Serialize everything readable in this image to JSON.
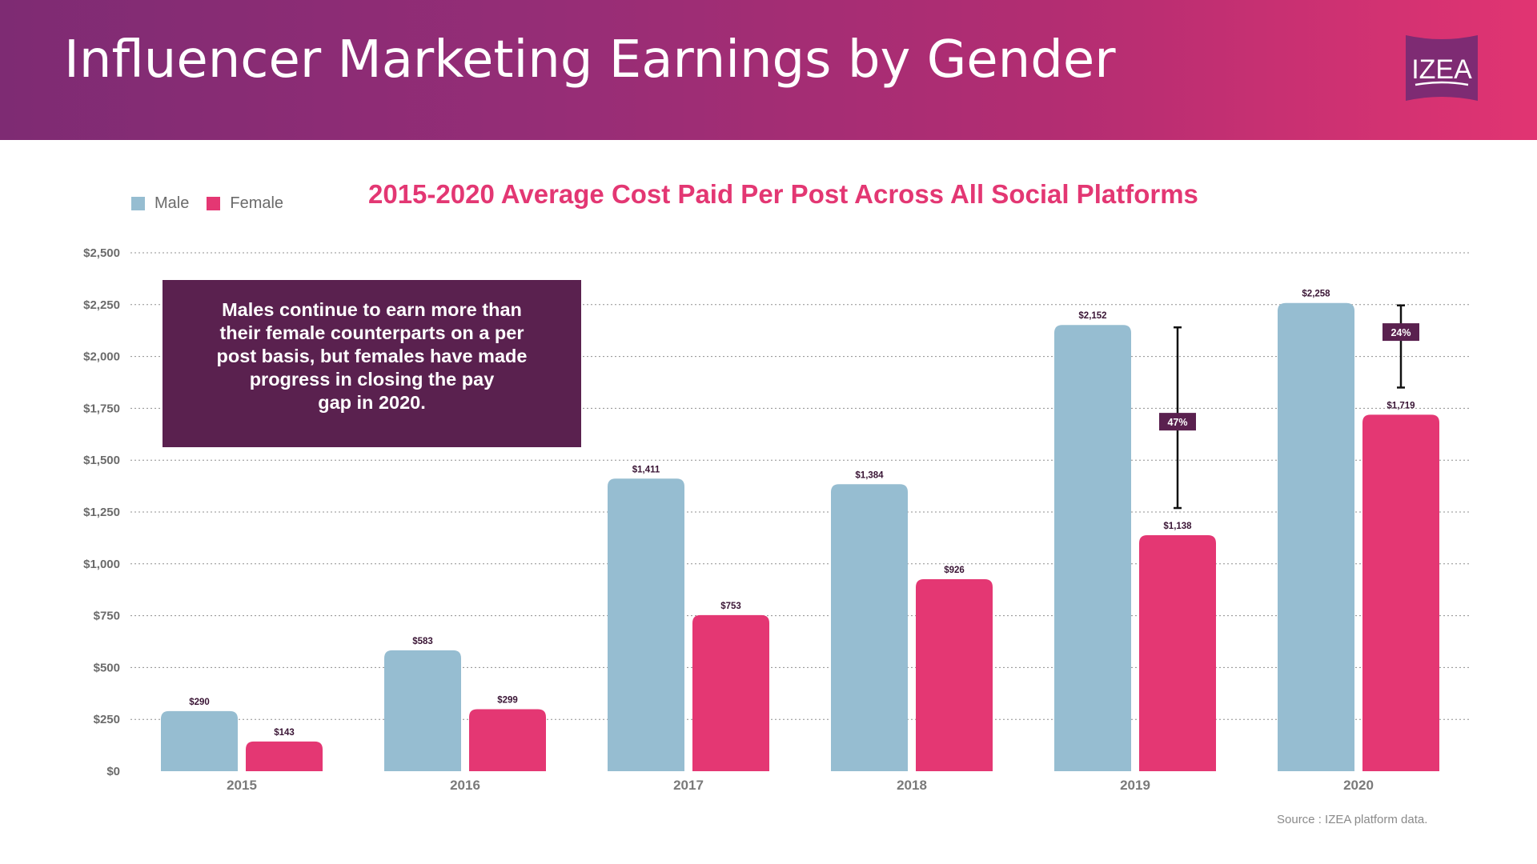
{
  "header": {
    "title": "Influencer Marketing Earnings by Gender",
    "logo_text": "IZEA",
    "logo_icon": "izea-logo-icon"
  },
  "colors": {
    "male": "#96bdd1",
    "female": "#e43773",
    "accent_dark": "#5a214f",
    "title_pink": "#e33773"
  },
  "callout": {
    "lines": [
      "Males continue to earn more than",
      "their female counterparts on a per",
      "post basis, but females have made",
      "progress in closing the pay",
      "gap in 2020."
    ]
  },
  "source": "Source : IZEA platform data.",
  "chart_data": {
    "type": "bar",
    "title": "2015-2020 Average Cost Paid Per Post Across All Social Platforms",
    "xlabel": "",
    "ylabel": "",
    "categories": [
      "2015",
      "2016",
      "2017",
      "2018",
      "2019",
      "2020"
    ],
    "series": [
      {
        "name": "Male",
        "values": [
          290,
          583,
          1411,
          1384,
          2152,
          2258
        ],
        "labels": [
          "$290",
          "$583",
          "$1,411",
          "$1,384",
          "$2,152",
          "$2,258"
        ]
      },
      {
        "name": "Female",
        "values": [
          143,
          299,
          753,
          926,
          1138,
          1719
        ],
        "labels": [
          "$143",
          "$299",
          "$753",
          "$926",
          "$1,138",
          "$1,719"
        ]
      }
    ],
    "ylim": [
      0,
      2500
    ],
    "yticks": [
      0,
      250,
      500,
      750,
      1000,
      1250,
      1500,
      1750,
      2000,
      2250,
      2500
    ],
    "ytick_labels": [
      "$0",
      "$250",
      "$500",
      "$750",
      "$1,000",
      "$1,250",
      "$1,500",
      "$1,750",
      "$2,000",
      "$2,250",
      "$2,500"
    ],
    "grid": true,
    "grid_style": "dotted",
    "legend": {
      "position": "top-left",
      "entries": [
        "Male",
        "Female"
      ]
    },
    "annotations": [
      {
        "category": "2019",
        "from": 2152,
        "to": 1138,
        "label": "47%"
      },
      {
        "category": "2020",
        "from": 2258,
        "to": 1719,
        "label": "24%"
      }
    ]
  }
}
